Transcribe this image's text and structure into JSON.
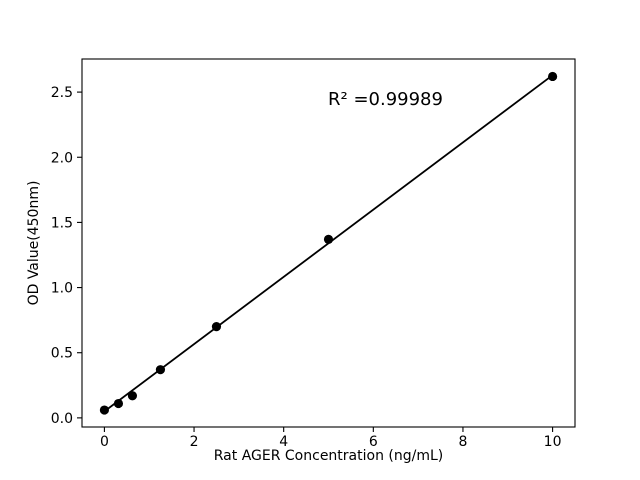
{
  "chart_data": {
    "type": "scatter",
    "title": "",
    "xlabel": "Rat AGER Concentration (ng/mL)",
    "ylabel": "OD Value(450nm)",
    "annotation": "R² =0.99989",
    "x": [
      0,
      0.313,
      0.625,
      1.25,
      2.5,
      5,
      10
    ],
    "y": [
      0.06,
      0.11,
      0.17,
      0.37,
      0.7,
      1.37,
      2.62
    ],
    "fit_line": {
      "x": [
        0,
        10
      ],
      "y": [
        0.05,
        2.63
      ]
    },
    "xticks": {
      "values": [
        0,
        2,
        4,
        6,
        8,
        10
      ],
      "labels": [
        "0",
        "2",
        "4",
        "6",
        "8",
        "10"
      ]
    },
    "yticks": {
      "values": [
        0.0,
        0.5,
        1.0,
        1.5,
        2.0,
        2.5
      ],
      "labels": [
        "0.0",
        "0.5",
        "1.0",
        "1.5",
        "2.0",
        "2.5"
      ]
    },
    "xlim": [
      -0.5,
      10.5
    ],
    "ylim": [
      -0.07,
      2.754
    ],
    "grid": false,
    "legend": null,
    "colors": {
      "marker": "#000000",
      "line": "#000000",
      "text": "#000000",
      "spine": "#000000",
      "background": "#ffffff"
    }
  }
}
